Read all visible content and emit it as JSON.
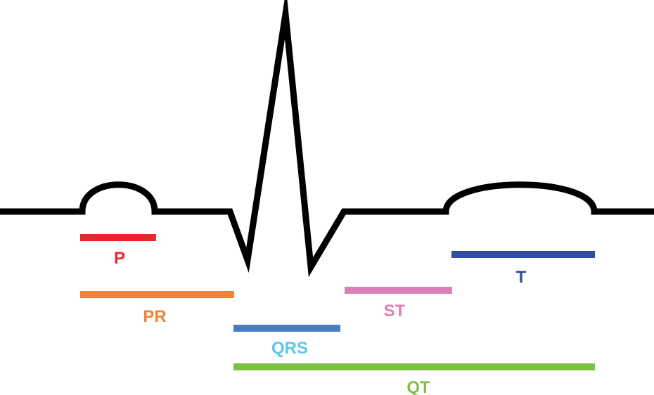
{
  "diagram": {
    "waveform_color": "#000000",
    "segments": [
      {
        "id": "p",
        "label": "P",
        "color": "#e8262a"
      },
      {
        "id": "pr",
        "label": "PR",
        "color": "#f0833a"
      },
      {
        "id": "qrs",
        "label": "QRS",
        "color": "#5bc8ea"
      },
      {
        "id": "st",
        "label": "ST",
        "color": "#d980b8"
      },
      {
        "id": "t",
        "label": "T",
        "color": "#2e4da3"
      },
      {
        "id": "qt",
        "label": "QT",
        "color": "#7dc142"
      }
    ],
    "qrs_bar_color": "#4a7cc4"
  }
}
